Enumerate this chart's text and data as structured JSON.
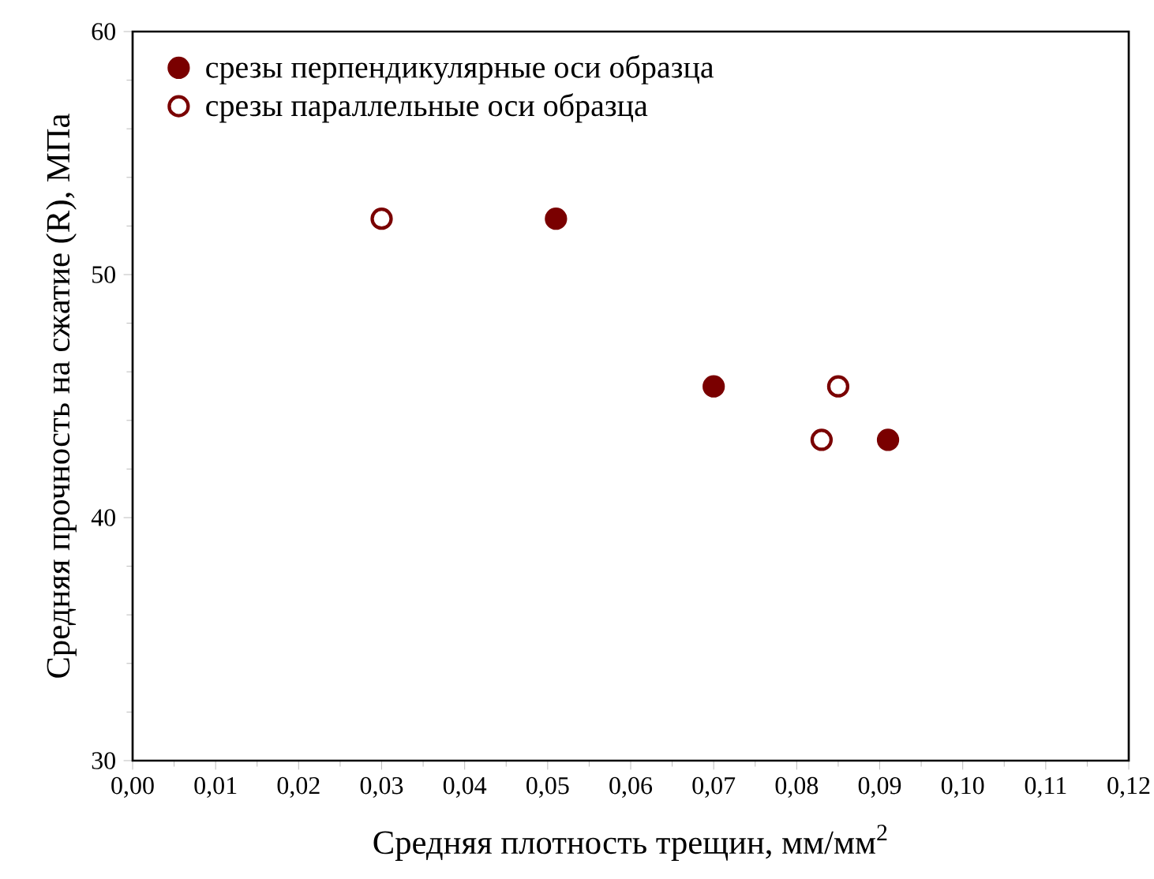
{
  "chart_data": {
    "type": "scatter",
    "xlabel": "Средняя плотность трещин, мм/мм$^{2}$",
    "ylabel": "Средняя прочность на сжатие (R), МПа",
    "xlim": [
      0,
      0.12
    ],
    "ylim": [
      30,
      60
    ],
    "xticks": [
      {
        "value": 0,
        "label": "0,00"
      },
      {
        "value": 0.01,
        "label": "0,01"
      },
      {
        "value": 0.02,
        "label": "0,02"
      },
      {
        "value": 0.03,
        "label": "0,03"
      },
      {
        "value": 0.04,
        "label": "0,04"
      },
      {
        "value": 0.05,
        "label": "0,05"
      },
      {
        "value": 0.06,
        "label": "0,06"
      },
      {
        "value": 0.07,
        "label": "0,07"
      },
      {
        "value": 0.08,
        "label": "0,08"
      },
      {
        "value": 0.09,
        "label": "0,09"
      },
      {
        "value": 0.1,
        "label": "0,10"
      },
      {
        "value": 0.11,
        "label": "0,11"
      },
      {
        "value": 0.12,
        "label": "0,12"
      }
    ],
    "yticks": [
      30,
      40,
      50,
      60
    ],
    "grid": false,
    "legend": "top left",
    "series": [
      {
        "name": "срезы перпендикулярные оси образца",
        "color": "#7a0000",
        "x": [
          0.051,
          0.07,
          0.091
        ],
        "values": [
          52.3,
          45.4,
          43.2
        ]
      },
      {
        "name": "срезы параллельные оси образца",
        "color": "#7a0000",
        "x": [
          0.03,
          0.085,
          0.083
        ],
        "values": [
          52.3,
          45.4,
          43.2
        ]
      }
    ]
  }
}
